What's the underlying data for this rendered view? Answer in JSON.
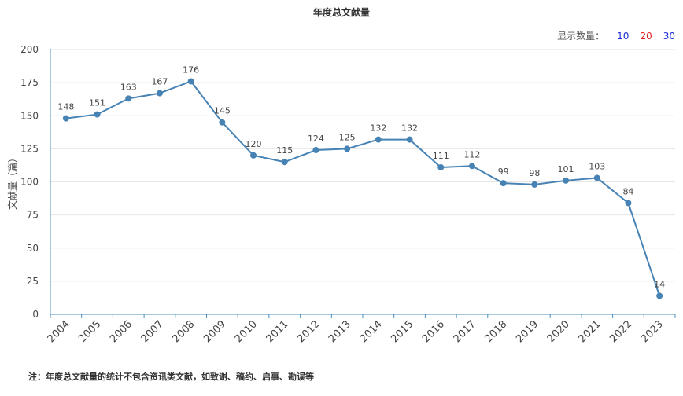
{
  "display_count": {
    "label": "显示数量：",
    "options": [
      "10",
      "20",
      "30"
    ]
  },
  "note": "注：年度总文献量的统计不包含资讯类文献，如致谢、稿约、启事、勘误等",
  "colors": {
    "line": "#4682b4",
    "grid": "#e6e6e6",
    "axis": "#4c8fbd",
    "option_blue": "#1a2bd6",
    "option_red": "#e0221f"
  },
  "chart_data": {
    "type": "line",
    "title": "年度总文献量",
    "ylabel": "文献量（篇）",
    "xlabel": "",
    "ylim": [
      0,
      200
    ],
    "yticks": [
      0,
      25,
      50,
      75,
      100,
      125,
      150,
      175,
      200
    ],
    "grid": true,
    "categories": [
      "2004",
      "2005",
      "2006",
      "2007",
      "2008",
      "2009",
      "2010",
      "2011",
      "2012",
      "2013",
      "2014",
      "2015",
      "2016",
      "2017",
      "2018",
      "2019",
      "2020",
      "2021",
      "2022",
      "2023"
    ],
    "series": [
      {
        "values": [
          148,
          151,
          163,
          167,
          176,
          145,
          120,
          115,
          124,
          125,
          132,
          132,
          111,
          112,
          99,
          98,
          101,
          103,
          84,
          14
        ]
      }
    ]
  }
}
